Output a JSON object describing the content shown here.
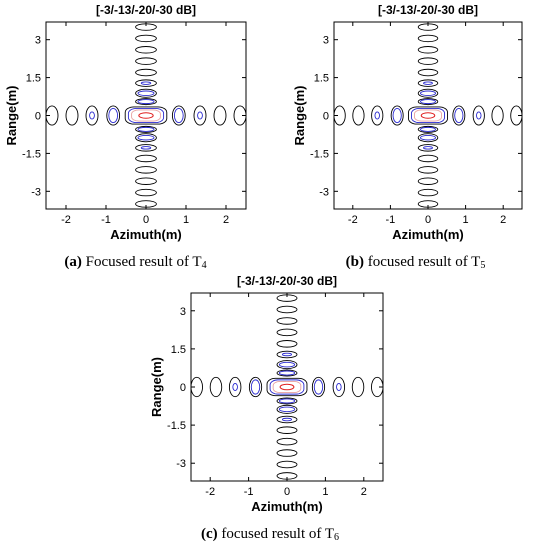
{
  "chart_data": [
    {
      "type": "contour",
      "title": "[-3/-13/-20/-30 dB]",
      "xlabel": "Azimuth(m)",
      "ylabel": "Range(m)",
      "xlim": [
        -2.5,
        2.5
      ],
      "ylim": [
        -3.7,
        3.7
      ],
      "xticks": [
        -2,
        -1,
        0,
        1,
        2
      ],
      "xtick_labels": [
        "-2",
        "-1",
        "0",
        "1",
        "2"
      ],
      "yticks": [
        3,
        1.5,
        0,
        -1.5,
        -3
      ],
      "ytick_labels": [
        "3",
        "1.5",
        "0",
        "-1.5",
        "-3"
      ],
      "contour_levels_db": [
        -3,
        -13,
        -20,
        -30
      ],
      "level_colors": [
        "#e02020",
        "#e8a0a0",
        "#2a2ad0",
        "#000000"
      ],
      "caption": {
        "label": "(a)",
        "text": "Focused result of T",
        "subscript": "4"
      }
    },
    {
      "type": "contour",
      "title": "[-3/-13/-20/-30 dB]",
      "xlabel": "Azimuth(m)",
      "ylabel": "Range(m)",
      "xlim": [
        -2.5,
        2.5
      ],
      "ylim": [
        -3.7,
        3.7
      ],
      "xticks": [
        -2,
        -1,
        0,
        1,
        2
      ],
      "xtick_labels": [
        "-2",
        "-1",
        "0",
        "1",
        "2"
      ],
      "yticks": [
        3,
        1.5,
        0,
        -1.5,
        -3
      ],
      "ytick_labels": [
        "3",
        "1.5",
        "0",
        "-1.5",
        "-3"
      ],
      "contour_levels_db": [
        -3,
        -13,
        -20,
        -30
      ],
      "level_colors": [
        "#e02020",
        "#e8a0a0",
        "#2a2ad0",
        "#000000"
      ],
      "caption": {
        "label": "(b)",
        "text": "focused result of T",
        "subscript": "5"
      }
    },
    {
      "type": "contour",
      "title": "[-3/-13/-20/-30 dB]",
      "xlabel": "Azimuth(m)",
      "ylabel": "Range(m)",
      "xlim": [
        -2.5,
        2.5
      ],
      "ylim": [
        -3.7,
        3.7
      ],
      "xticks": [
        -2,
        -1,
        0,
        1,
        2
      ],
      "xtick_labels": [
        "-2",
        "-1",
        "0",
        "1",
        "2"
      ],
      "yticks": [
        3,
        1.5,
        0,
        -1.5,
        -3
      ],
      "ytick_labels": [
        "3",
        "1.5",
        "0",
        "-1.5",
        "-3"
      ],
      "contour_levels_db": [
        -3,
        -13,
        -20,
        -30
      ],
      "level_colors": [
        "#e02020",
        "#e8a0a0",
        "#2a2ad0",
        "#000000"
      ],
      "caption": {
        "label": "(c)",
        "text": "focused result of T",
        "subscript": "6"
      }
    }
  ]
}
